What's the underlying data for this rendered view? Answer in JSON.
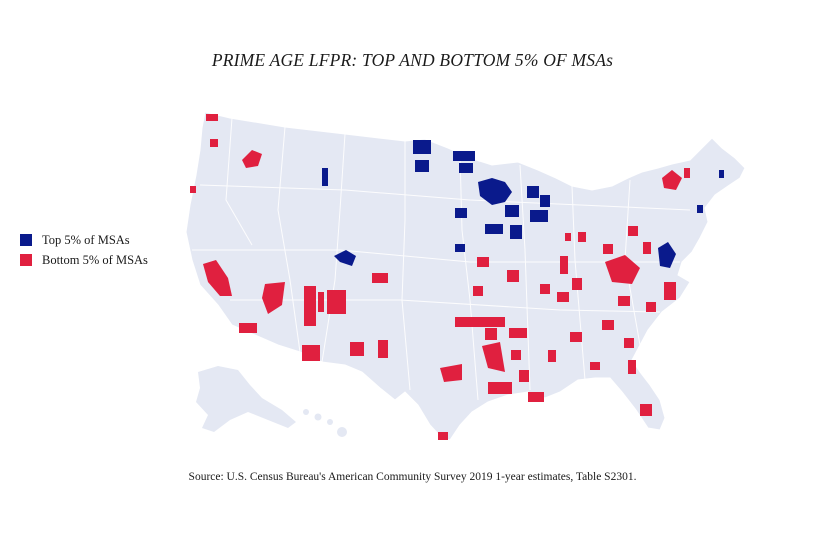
{
  "title": "PRIME AGE LFPR: TOP AND BOTTOM 5% OF MSAs",
  "legend": {
    "top": {
      "label": "Top 5% of MSAs",
      "color": "#0a1a8c"
    },
    "bottom": {
      "label": "Bottom 5% of MSAs",
      "color": "#e0203f"
    }
  },
  "source": "Source: U.S. Census Bureau's American Community Survey 2019 1-year estimates, Table S2301.",
  "colors": {
    "land": "#e4e8f3",
    "border": "#ffffff",
    "top": "#0a1a8c",
    "bottom": "#e0203f"
  }
}
